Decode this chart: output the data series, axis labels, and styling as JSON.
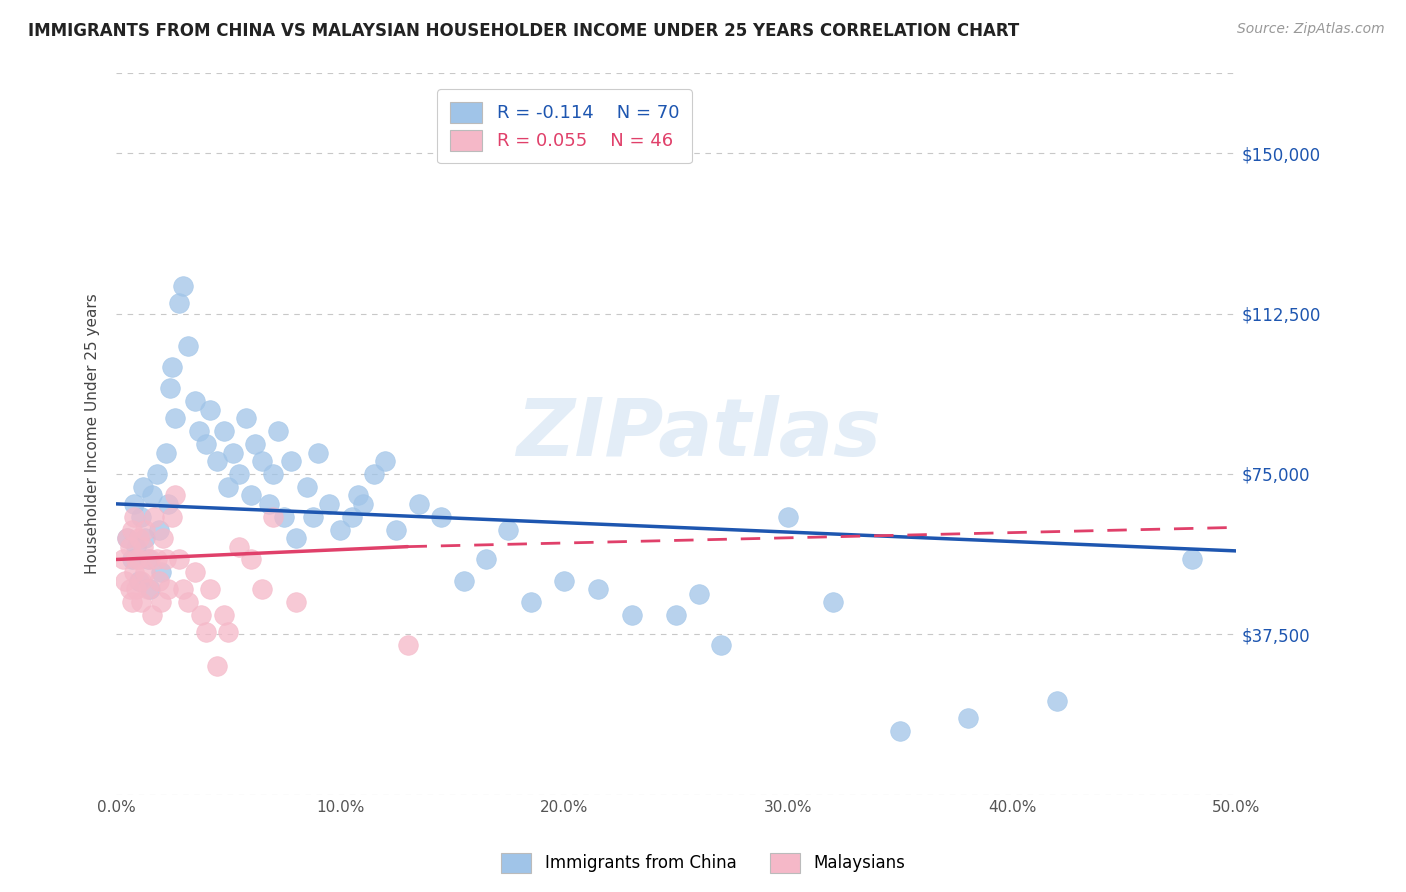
{
  "title": "IMMIGRANTS FROM CHINA VS MALAYSIAN HOUSEHOLDER INCOME UNDER 25 YEARS CORRELATION CHART",
  "source": "Source: ZipAtlas.com",
  "ylabel": "Householder Income Under 25 years",
  "xlim": [
    0.0,
    0.5
  ],
  "ylim": [
    0,
    168750
  ],
  "xticks": [
    0.0,
    0.1,
    0.2,
    0.3,
    0.4,
    0.5
  ],
  "xtick_labels": [
    "0.0%",
    "10.0%",
    "20.0%",
    "30.0%",
    "40.0%",
    "50.0%"
  ],
  "ytick_values": [
    0,
    37500,
    75000,
    112500,
    150000
  ],
  "ytick_labels": [
    "",
    "$37,500",
    "$75,000",
    "$112,500",
    "$150,000"
  ],
  "grid_color": "#c8c8c8",
  "background_color": "#ffffff",
  "blue_color": "#a0c4e8",
  "blue_line_color": "#1e56b0",
  "pink_color": "#f5b8c8",
  "pink_line_color": "#e0406a",
  "watermark": "ZIPatlas",
  "legend_R1": "R = -0.114",
  "legend_N1": "N = 70",
  "legend_R2": "R = 0.055",
  "legend_N2": "N = 46",
  "legend_label1": "Immigrants from China",
  "legend_label2": "Malaysians",
  "blue_line_x0": 0.0,
  "blue_line_y0": 68000,
  "blue_line_x1": 0.5,
  "blue_line_y1": 57000,
  "pink_line_x0": 0.0,
  "pink_line_y0": 55000,
  "pink_line_x1_solid": 0.13,
  "pink_line_y1_solid": 58000,
  "pink_line_x1_dash": 0.5,
  "pink_line_y1_dash": 62500,
  "blue_x": [
    0.005,
    0.007,
    0.008,
    0.009,
    0.01,
    0.011,
    0.012,
    0.013,
    0.014,
    0.015,
    0.016,
    0.018,
    0.019,
    0.02,
    0.022,
    0.023,
    0.024,
    0.025,
    0.026,
    0.028,
    0.03,
    0.032,
    0.035,
    0.037,
    0.04,
    0.042,
    0.045,
    0.048,
    0.05,
    0.052,
    0.055,
    0.058,
    0.06,
    0.062,
    0.065,
    0.068,
    0.07,
    0.072,
    0.075,
    0.078,
    0.08,
    0.085,
    0.088,
    0.09,
    0.095,
    0.1,
    0.105,
    0.108,
    0.11,
    0.115,
    0.12,
    0.125,
    0.135,
    0.145,
    0.155,
    0.165,
    0.175,
    0.185,
    0.2,
    0.215,
    0.23,
    0.25,
    0.26,
    0.27,
    0.3,
    0.32,
    0.35,
    0.38,
    0.42,
    0.48
  ],
  "blue_y": [
    60000,
    55000,
    68000,
    58000,
    50000,
    65000,
    72000,
    60000,
    55000,
    48000,
    70000,
    75000,
    62000,
    52000,
    80000,
    68000,
    95000,
    100000,
    88000,
    115000,
    119000,
    105000,
    92000,
    85000,
    82000,
    90000,
    78000,
    85000,
    72000,
    80000,
    75000,
    88000,
    70000,
    82000,
    78000,
    68000,
    75000,
    85000,
    65000,
    78000,
    60000,
    72000,
    65000,
    80000,
    68000,
    62000,
    65000,
    70000,
    68000,
    75000,
    78000,
    62000,
    68000,
    65000,
    50000,
    55000,
    62000,
    45000,
    50000,
    48000,
    42000,
    42000,
    47000,
    35000,
    65000,
    45000,
    15000,
    18000,
    22000,
    55000
  ],
  "pink_x": [
    0.003,
    0.004,
    0.005,
    0.006,
    0.006,
    0.007,
    0.007,
    0.008,
    0.008,
    0.009,
    0.009,
    0.01,
    0.01,
    0.011,
    0.011,
    0.012,
    0.013,
    0.013,
    0.014,
    0.015,
    0.016,
    0.017,
    0.018,
    0.019,
    0.02,
    0.021,
    0.022,
    0.023,
    0.025,
    0.026,
    0.028,
    0.03,
    0.032,
    0.035,
    0.038,
    0.04,
    0.042,
    0.045,
    0.048,
    0.05,
    0.055,
    0.06,
    0.065,
    0.07,
    0.08,
    0.13
  ],
  "pink_y": [
    55000,
    50000,
    60000,
    48000,
    58000,
    45000,
    62000,
    52000,
    65000,
    55000,
    48000,
    60000,
    55000,
    50000,
    45000,
    58000,
    52000,
    62000,
    48000,
    55000,
    42000,
    65000,
    55000,
    50000,
    45000,
    60000,
    55000,
    48000,
    65000,
    70000,
    55000,
    48000,
    45000,
    52000,
    42000,
    38000,
    48000,
    30000,
    42000,
    38000,
    58000,
    55000,
    48000,
    65000,
    45000,
    35000
  ]
}
